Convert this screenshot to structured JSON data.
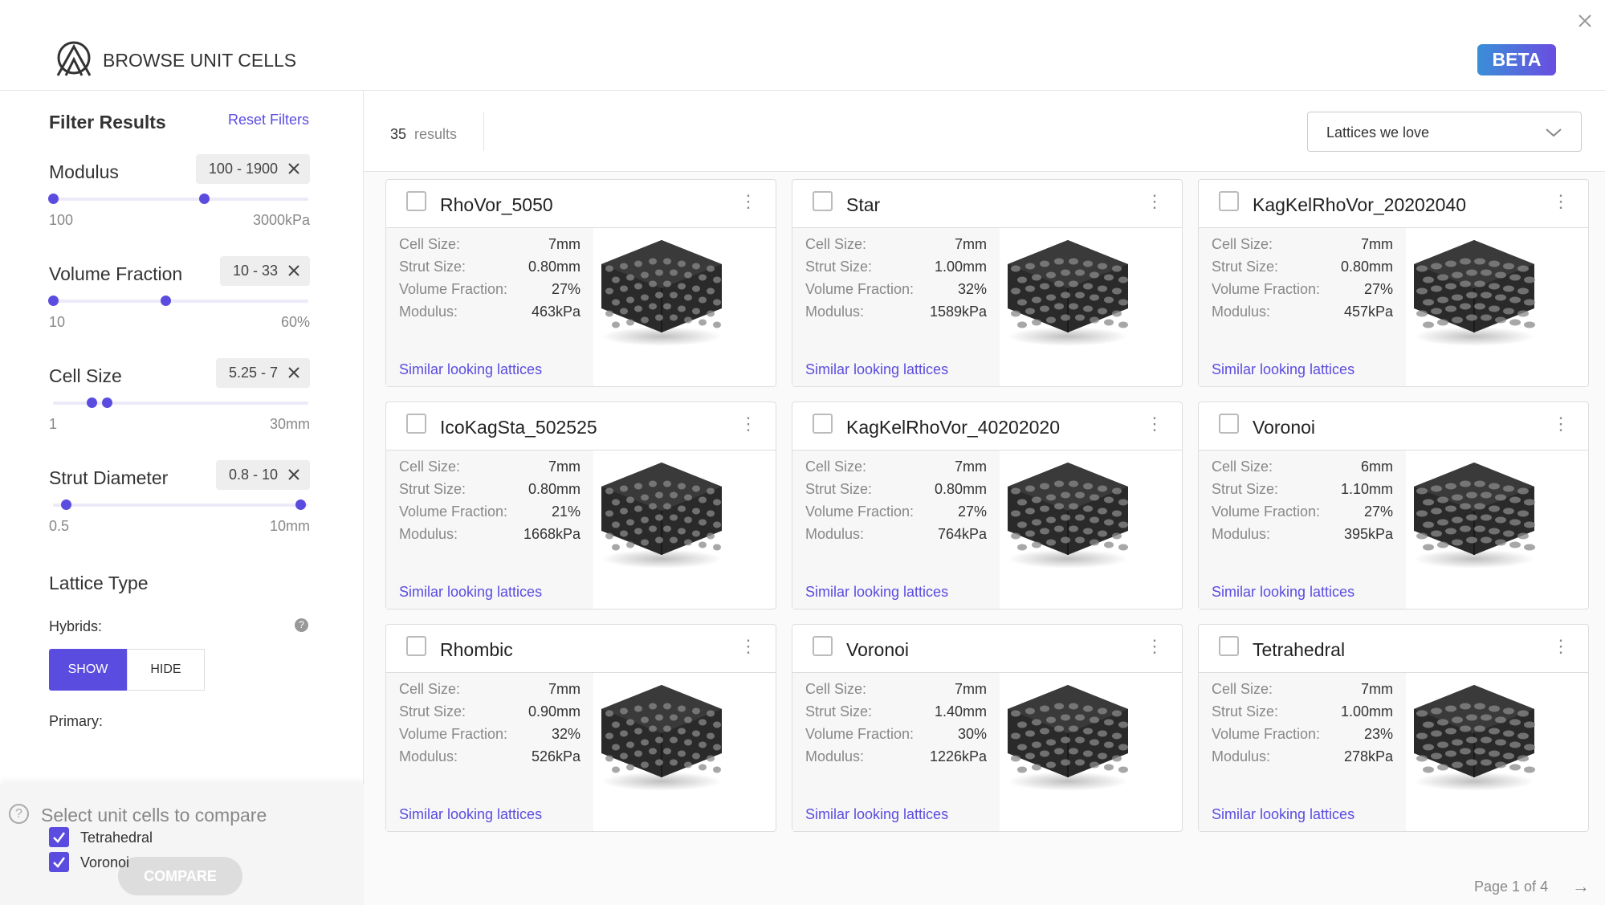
{
  "header": {
    "title": "BROWSE UNIT CELLS",
    "badge": "BETA"
  },
  "filters": {
    "title": "Filter Results",
    "reset": "Reset Filters",
    "sliders": [
      {
        "label": "Modulus",
        "chip": "100 - 1900",
        "min": "100",
        "max": "3000kPa"
      },
      {
        "label": "Volume Fraction",
        "chip": "10 - 33",
        "min": "10",
        "max": "60%"
      },
      {
        "label": "Cell Size",
        "chip": "5.25 - 7",
        "min": "1",
        "max": "30mm"
      },
      {
        "label": "Strut Diameter",
        "chip": "0.8 - 10",
        "min": "0.5",
        "max": "10mm"
      }
    ],
    "lattice_type": "Lattice Type",
    "hybrids": "Hybrids:",
    "show": "SHOW",
    "hide": "HIDE",
    "primary": "Primary:",
    "options": [
      "Tetrahedral",
      "Voronoi"
    ]
  },
  "compare": {
    "prompt": "Select unit cells to compare",
    "button": "COMPARE"
  },
  "results": {
    "count": "35",
    "label": "results",
    "sort": "Lattices we love",
    "pagination": "Page 1 of 4"
  },
  "cards": [
    {
      "name": "RhoVor_5050",
      "rows": [
        [
          "Cell Size:",
          "7mm"
        ],
        [
          "Strut Size:",
          "0.80mm"
        ],
        [
          "Volume Fraction:",
          "27%"
        ],
        [
          "Modulus:",
          "463kPa"
        ]
      ],
      "link": "Similar looking lattices"
    },
    {
      "name": "Star",
      "rows": [
        [
          "Cell Size:",
          "7mm"
        ],
        [
          "Strut Size:",
          "1.00mm"
        ],
        [
          "Volume Fraction:",
          "32%"
        ],
        [
          "Modulus:",
          "1589kPa"
        ]
      ],
      "link": "Similar looking lattices"
    },
    {
      "name": "KagKelRhoVor_20202040",
      "rows": [
        [
          "Cell Size:",
          "7mm"
        ],
        [
          "Strut Size:",
          "0.80mm"
        ],
        [
          "Volume Fraction:",
          "27%"
        ],
        [
          "Modulus:",
          "457kPa"
        ]
      ],
      "link": "Similar looking lattices"
    },
    {
      "name": "IcoKagSta_502525",
      "rows": [
        [
          "Cell Size:",
          "7mm"
        ],
        [
          "Strut Size:",
          "0.80mm"
        ],
        [
          "Volume Fraction:",
          "21%"
        ],
        [
          "Modulus:",
          "1668kPa"
        ]
      ],
      "link": "Similar looking lattices"
    },
    {
      "name": "KagKelRhoVor_40202020",
      "rows": [
        [
          "Cell Size:",
          "7mm"
        ],
        [
          "Strut Size:",
          "0.80mm"
        ],
        [
          "Volume Fraction:",
          "27%"
        ],
        [
          "Modulus:",
          "764kPa"
        ]
      ],
      "link": "Similar looking lattices"
    },
    {
      "name": "Voronoi",
      "rows": [
        [
          "Cell Size:",
          "6mm"
        ],
        [
          "Strut Size:",
          "1.10mm"
        ],
        [
          "Volume Fraction:",
          "27%"
        ],
        [
          "Modulus:",
          "395kPa"
        ]
      ],
      "link": "Similar looking lattices"
    },
    {
      "name": "Rhombic",
      "rows": [
        [
          "Cell Size:",
          "7mm"
        ],
        [
          "Strut Size:",
          "0.90mm"
        ],
        [
          "Volume Fraction:",
          "32%"
        ],
        [
          "Modulus:",
          "526kPa"
        ]
      ],
      "link": "Similar looking lattices"
    },
    {
      "name": "Voronoi",
      "rows": [
        [
          "Cell Size:",
          "7mm"
        ],
        [
          "Strut Size:",
          "1.40mm"
        ],
        [
          "Volume Fraction:",
          "30%"
        ],
        [
          "Modulus:",
          "1226kPa"
        ]
      ],
      "link": "Similar looking lattices"
    },
    {
      "name": "Tetrahedral",
      "rows": [
        [
          "Cell Size:",
          "7mm"
        ],
        [
          "Strut Size:",
          "1.00mm"
        ],
        [
          "Volume Fraction:",
          "23%"
        ],
        [
          "Modulus:",
          "278kPa"
        ]
      ],
      "link": "Similar looking lattices"
    }
  ]
}
